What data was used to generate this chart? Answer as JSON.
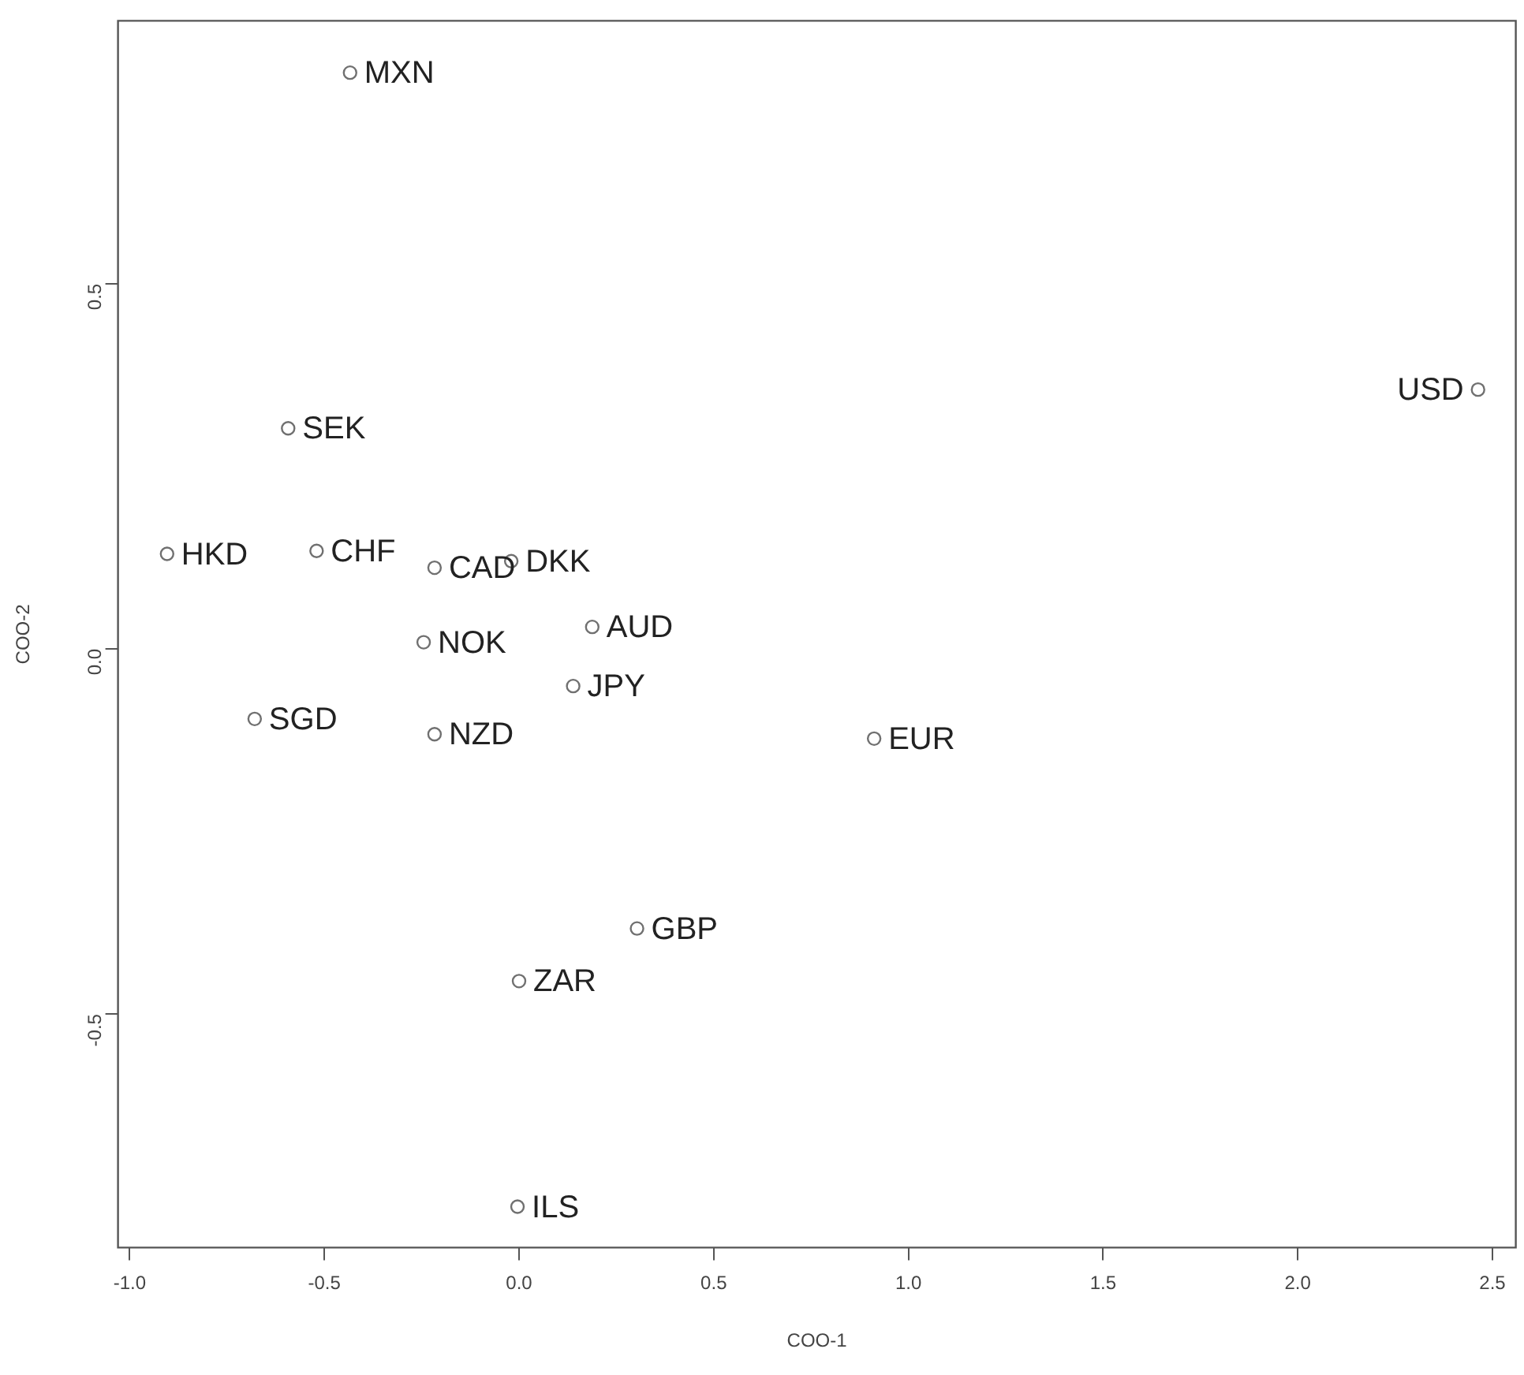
{
  "chart_data": {
    "type": "scatter",
    "xlabel": "COO-1",
    "ylabel": "COO-2",
    "x": [
      -0.434,
      -0.593,
      -0.904,
      -0.52,
      -0.217,
      -0.02,
      -0.245,
      0.188,
      0.139,
      -0.679,
      -0.217,
      0.912,
      2.463,
      0.303,
      0.0,
      -0.004
    ],
    "series": [
      {
        "color": "#707070",
        "values": [
          0.789,
          0.302,
          0.13,
          0.134,
          0.111,
          0.12,
          0.009,
          0.03,
          -0.051,
          -0.096,
          -0.117,
          -0.123,
          0.355,
          -0.383,
          -0.455,
          -0.764
        ]
      }
    ],
    "marker": "circle",
    "grid": false,
    "legend": false,
    "xlim": [
      -1.03,
      2.56
    ],
    "xticks": [
      {
        "value": -1,
        "label": "-1.0"
      },
      {
        "value": -0.5,
        "label": "-0.5"
      },
      {
        "value": 0,
        "label": "0.0"
      },
      {
        "value": 0.5,
        "label": "0.5"
      },
      {
        "value": 1,
        "label": "1.0"
      },
      {
        "value": 1.5,
        "label": "1.5"
      },
      {
        "value": 2,
        "label": "2.0"
      },
      {
        "value": 2.5,
        "label": "2.5"
      }
    ],
    "ylim": [
      -0.82,
      0.86
    ],
    "yticks": [
      {
        "value": -0.5,
        "label": "-0.5"
      },
      {
        "value": 0,
        "label": "0.0"
      },
      {
        "value": 0.5,
        "label": "0.5"
      }
    ],
    "annotations": [
      {
        "text": "MXN",
        "x": -0.434,
        "y": 0.789
      },
      {
        "text": "SEK",
        "x": -0.593,
        "y": 0.302
      },
      {
        "text": "HKD",
        "x": -0.904,
        "y": 0.13
      },
      {
        "text": "CHF",
        "x": -0.52,
        "y": 0.134
      },
      {
        "text": "CAD",
        "x": -0.217,
        "y": 0.111
      },
      {
        "text": "DKK",
        "x": -0.02,
        "y": 0.12
      },
      {
        "text": "NOK",
        "x": -0.245,
        "y": 0.009
      },
      {
        "text": "AUD",
        "x": 0.188,
        "y": 0.03
      },
      {
        "text": "JPY",
        "x": 0.139,
        "y": -0.051
      },
      {
        "text": "SGD",
        "x": -0.679,
        "y": -0.096
      },
      {
        "text": "NZD",
        "x": -0.217,
        "y": -0.117
      },
      {
        "text": "EUR",
        "x": 0.912,
        "y": -0.123
      },
      {
        "text": "USD",
        "x": 2.463,
        "y": 0.355
      },
      {
        "text": "GBP",
        "x": 0.303,
        "y": -0.383
      },
      {
        "text": "ZAR",
        "x": 0.0,
        "y": -0.455
      },
      {
        "text": "ILS",
        "x": -0.004,
        "y": -0.764
      }
    ]
  }
}
